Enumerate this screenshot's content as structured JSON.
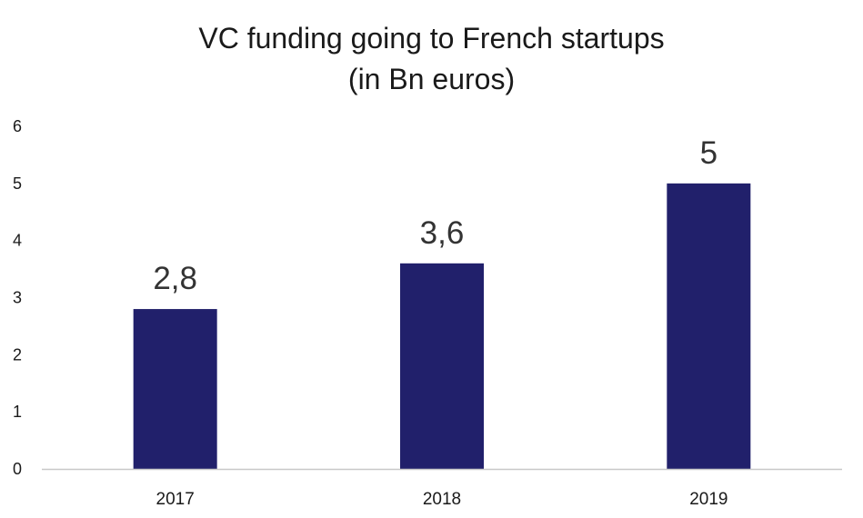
{
  "chart_data": {
    "type": "bar",
    "title": "VC funding going to French startups",
    "subtitle": "(in Bn euros)",
    "categories": [
      "2017",
      "2018",
      "2019"
    ],
    "values": [
      2.8,
      3.6,
      5
    ],
    "data_labels": [
      "2,8",
      "3,6",
      "5"
    ],
    "ylim": [
      0,
      6
    ],
    "yticks": [
      "0",
      "1",
      "2",
      "3",
      "4",
      "5",
      "6"
    ],
    "xlabel": "",
    "ylabel": "",
    "grid": false,
    "legend": "none",
    "bar_color": "#21206b",
    "axis_color": "#c8c8c8"
  }
}
